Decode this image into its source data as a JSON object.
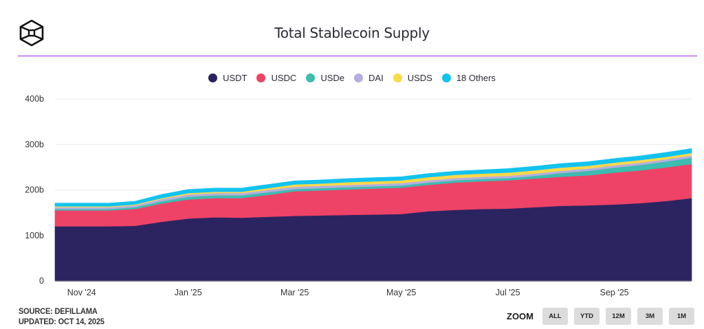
{
  "header": {
    "title": "Total Stablecoin Supply",
    "logo_icon": "hexagon-cube-logo-icon",
    "accent_color": "#a620e6"
  },
  "footer": {
    "source": "SOURCE: DEFILLAMA",
    "updated": "UPDATED: OCT 14, 2025",
    "zoom_label": "ZOOM",
    "zoom_buttons": [
      "ALL",
      "YTD",
      "12M",
      "3M",
      "1M"
    ]
  },
  "chart_data": {
    "type": "area",
    "stacked": true,
    "title": "Total Stablecoin Supply",
    "xlabel": "",
    "ylabel": "",
    "ylim": [
      0,
      400
    ],
    "y_unit": "b",
    "y_ticks": [
      "0",
      "100b",
      "200b",
      "300b",
      "400b"
    ],
    "y_tick_values": [
      0,
      100,
      200,
      300,
      400
    ],
    "x_ticks": [
      "Nov '24",
      "Jan '25",
      "Mar '25",
      "May '25",
      "Jul '25",
      "Sep '25"
    ],
    "x_tick_months": [
      1,
      3,
      5,
      7,
      9,
      11
    ],
    "x_months": [
      0.5,
      1.0,
      1.5,
      2.0,
      2.5,
      3.0,
      3.5,
      4.0,
      4.5,
      5.0,
      5.5,
      6.0,
      6.5,
      7.0,
      7.5,
      8.0,
      8.5,
      9.0,
      9.5,
      10.0,
      10.5,
      11.0,
      11.5,
      12.0,
      12.45
    ],
    "x_month_origin": "Oct '24",
    "grid": true,
    "legend_position": "top-center",
    "series": [
      {
        "name": "USDT",
        "color": "#2b2460",
        "values": [
          120,
          120,
          120,
          121,
          130,
          137,
          140,
          139,
          141,
          143,
          144,
          145,
          146,
          147,
          153,
          156,
          158,
          159,
          162,
          165,
          166,
          168,
          171,
          176,
          182
        ]
      },
      {
        "name": "USDC",
        "color": "#ef4267",
        "values": [
          35,
          35,
          35,
          37,
          40,
          42,
          42,
          43,
          48,
          54,
          55,
          56,
          57,
          58,
          58,
          60,
          61,
          62,
          63,
          64,
          66,
          70,
          72,
          74,
          75
        ]
      },
      {
        "name": "USDe",
        "color": "#3dbcb0",
        "values": [
          3,
          3,
          3,
          4,
          5,
          6,
          6,
          6,
          6,
          5,
          5,
          5,
          5,
          5,
          5,
          5,
          5,
          5,
          6,
          8,
          10,
          11,
          12,
          13,
          14
        ]
      },
      {
        "name": "DAI",
        "color": "#b4aee0",
        "values": [
          4,
          4,
          4,
          4,
          5,
          5,
          5,
          5,
          5,
          5,
          5,
          5,
          5,
          5,
          5,
          5,
          5,
          5,
          5,
          5,
          5,
          5,
          5,
          5,
          5
        ]
      },
      {
        "name": "USDS",
        "color": "#fbd94a",
        "values": [
          2,
          2,
          2,
          2,
          2,
          3,
          3,
          3,
          4,
          5,
          5,
          6,
          6,
          6,
          7,
          7,
          7,
          7,
          7,
          7,
          6,
          6,
          6,
          5,
          5
        ]
      },
      {
        "name": "18 Others",
        "color": "#12c3ef",
        "values": [
          7,
          7,
          7,
          7,
          8,
          8,
          8,
          8,
          8,
          8,
          8,
          8,
          8,
          8,
          8,
          8,
          8,
          9,
          9,
          9,
          9,
          9,
          9,
          10,
          10
        ]
      }
    ]
  }
}
